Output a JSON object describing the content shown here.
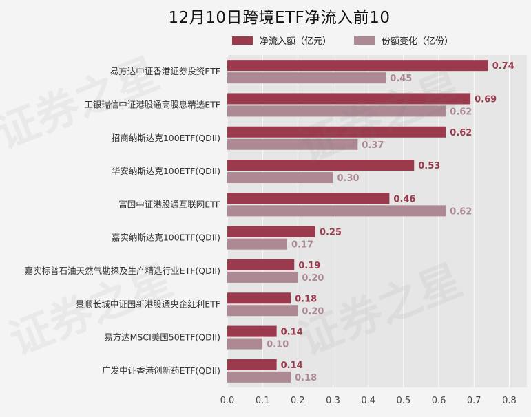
{
  "chart_data": {
    "type": "bar",
    "orientation": "horizontal",
    "title": "12月10日跨境ETF净流入前10",
    "categories": [
      "易方达中证香港证券投资ETF",
      "工银瑞信中证港股通高股息精选ETF",
      "招商纳斯达克100ETF(QDII)",
      "华安纳斯达克100ETF(QDII)",
      "富国中证港股通互联网ETF",
      "嘉实纳斯达克100ETF(QDII)",
      "嘉实标普石油天然气勘探及生产精选行业ETF(QDII)",
      "景顺长城中证国新港股通央企红利ETF",
      "易方达MSCI美国50ETF(QDII)",
      "广发中证香港创新药ETF(QDII)"
    ],
    "series": [
      {
        "name": "净流入额（亿元）",
        "color": "#9b3a4c",
        "values": [
          0.74,
          0.69,
          0.62,
          0.53,
          0.46,
          0.25,
          0.19,
          0.18,
          0.14,
          0.14
        ],
        "labels": [
          "0.74",
          "0.69",
          "0.62",
          "0.53",
          "0.46",
          "0.25",
          "0.19",
          "0.18",
          "0.14",
          "0.14"
        ]
      },
      {
        "name": "份额变化（亿份）",
        "color": "#ad8a93",
        "values": [
          0.45,
          0.62,
          0.37,
          0.3,
          0.62,
          0.17,
          0.2,
          0.2,
          0.1,
          0.18
        ],
        "labels": [
          "0.45",
          "0.62",
          "0.37",
          "0.30",
          "0.62",
          "0.17",
          "0.20",
          "0.20",
          "0.10",
          "0.18"
        ]
      }
    ],
    "xticks": [
      "0.0",
      "0.1",
      "0.2",
      "0.3",
      "0.4",
      "0.5",
      "0.6",
      "0.7",
      "0.8"
    ],
    "xlim": [
      0,
      0.85
    ],
    "grid": true,
    "legend": "top",
    "watermark": "证券之星"
  }
}
